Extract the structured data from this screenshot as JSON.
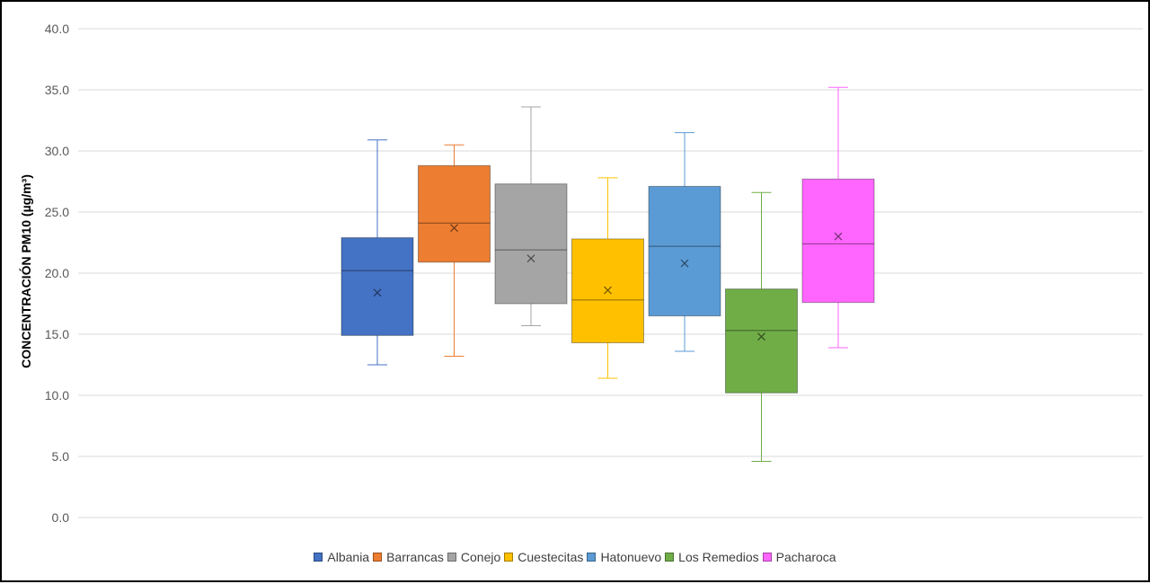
{
  "chart_data": {
    "type": "box",
    "ylabel": "CONCENTRACIÓN PM10 (µg/m³)",
    "ylim": [
      0,
      40
    ],
    "yticks": [
      "0.0",
      "5.0",
      "10.0",
      "15.0",
      "20.0",
      "25.0",
      "30.0",
      "35.0",
      "40.0"
    ],
    "grid": true,
    "legend_position": "bottom",
    "series": [
      {
        "name": "Albania",
        "color": "#4472C4",
        "min": 12.5,
        "q1": 14.9,
        "median": 20.2,
        "q3": 22.9,
        "max": 30.9,
        "mean": 18.4
      },
      {
        "name": "Barrancas",
        "color": "#ED7D31",
        "min": 13.2,
        "q1": 20.9,
        "median": 24.1,
        "q3": 28.8,
        "max": 30.5,
        "mean": 23.7
      },
      {
        "name": "Conejo",
        "color": "#A5A5A5",
        "min": 15.7,
        "q1": 17.5,
        "median": 21.9,
        "q3": 27.3,
        "max": 33.6,
        "mean": 21.2
      },
      {
        "name": "Cuestecitas",
        "color": "#FFC000",
        "min": 11.4,
        "q1": 14.3,
        "median": 17.8,
        "q3": 22.8,
        "max": 27.8,
        "mean": 18.6
      },
      {
        "name": "Hatonuevo",
        "color": "#5B9BD5",
        "min": 13.6,
        "q1": 16.5,
        "median": 22.2,
        "q3": 27.1,
        "max": 31.5,
        "mean": 20.8
      },
      {
        "name": "Los Remedios",
        "color": "#70AD47",
        "min": 4.6,
        "q1": 10.2,
        "median": 15.3,
        "q3": 18.7,
        "max": 26.6,
        "mean": 14.8
      },
      {
        "name": "Pacharoca",
        "color": "#FF66FF",
        "min": 13.9,
        "q1": 17.6,
        "median": 22.4,
        "q3": 27.7,
        "max": 35.2,
        "mean": 23.0
      }
    ]
  }
}
